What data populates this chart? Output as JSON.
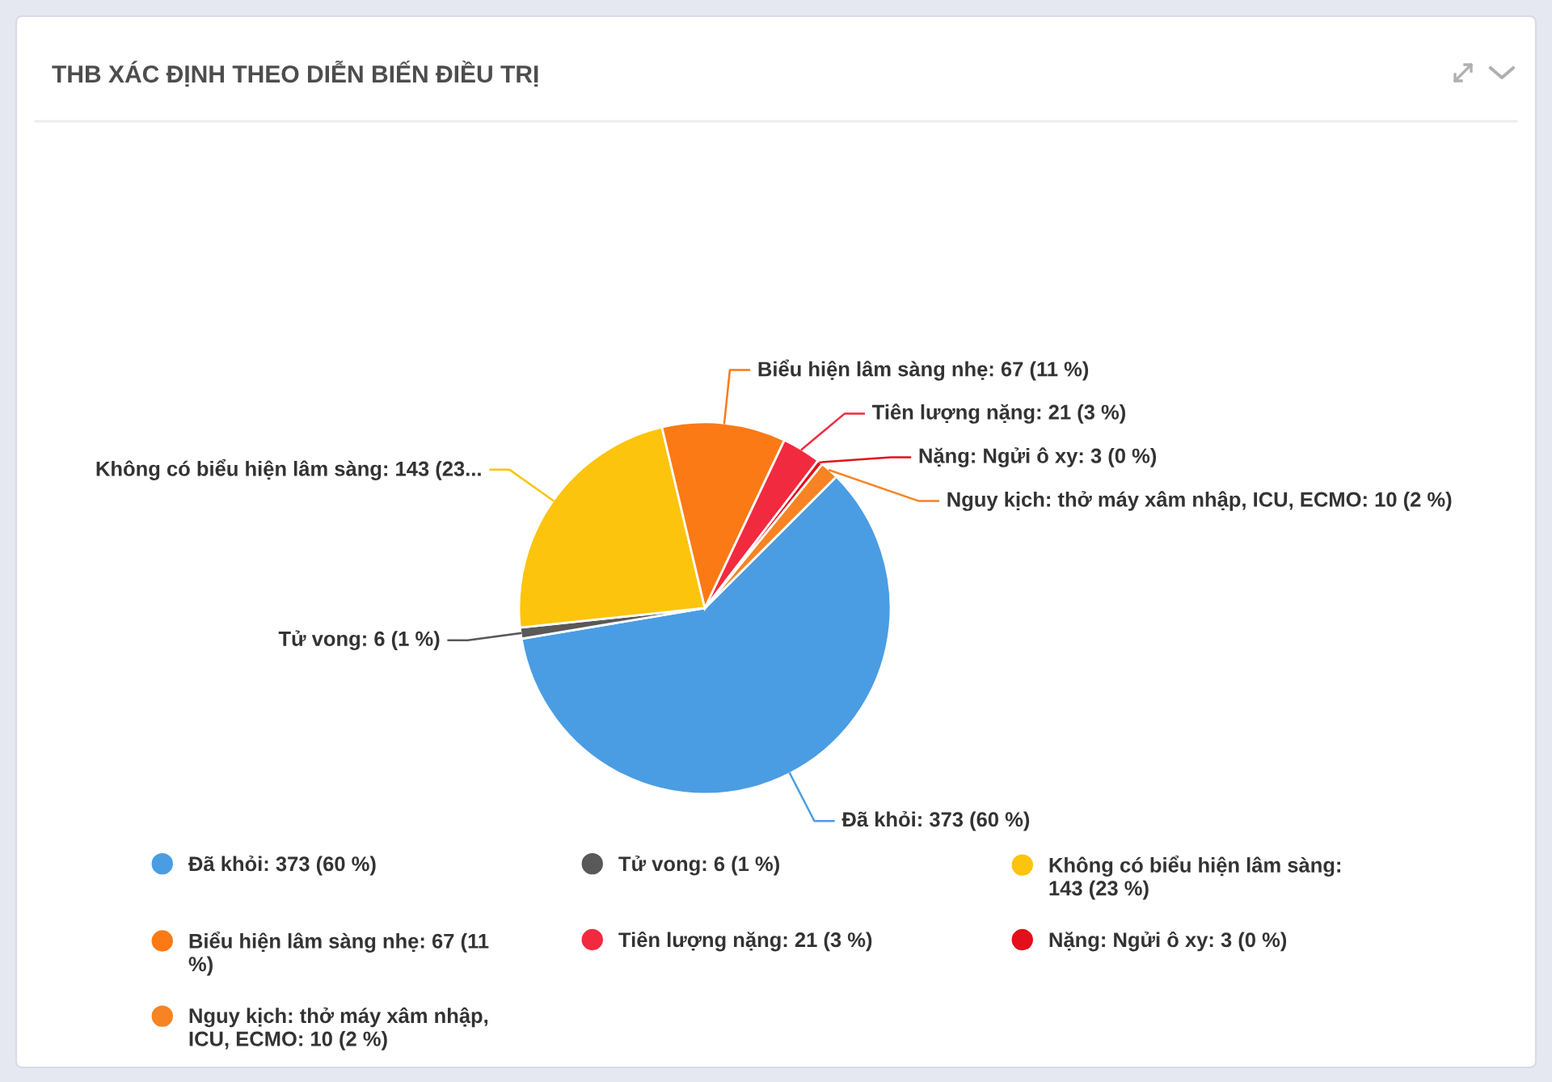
{
  "chart_data": {
    "type": "pie",
    "title": "THB XÁC ĐỊNH THEO DIỄN BIẾN ĐIỀU TRỊ",
    "categories": [
      "Đã khỏi: 373 (60 %)",
      "Tử vong: 6 (1 %)",
      "Không có biểu hiện lâm sàng: 143 (23 %)",
      "Biểu hiện lâm sàng nhẹ: 67 (11 %)",
      "Tiên lượng nặng: 21 (3 %)",
      "Nặng: Ngửi ô xy: 3 (0 %)",
      "Nguy kịch: thở máy xâm nhập, ICU, ECMO: 10 (2 %)"
    ],
    "values": [
      373,
      6,
      143,
      67,
      21,
      3,
      10
    ],
    "colors": [
      "#4a9de3",
      "#595959",
      "#fcc40c",
      "#fb7a15",
      "#f22a40",
      "#e3101b",
      "#f78322"
    ],
    "value_labels": [
      "Đã khỏi: 373 (60 %)",
      "Tử vong: 6 (1 %)",
      "Không có biểu hiện lâm sàng: 143 (23...",
      "Biểu hiện lâm sàng nhẹ: 67 (11 %)",
      "Tiên lượng nặng: 21 (3 %)",
      "Nặng: Ngửi ô xy: 3 (0 %)",
      "Nguy kịch: thở máy xâm nhập, ICU, ECMO: 10 (2 %)"
    ],
    "legend": "bottom"
  }
}
